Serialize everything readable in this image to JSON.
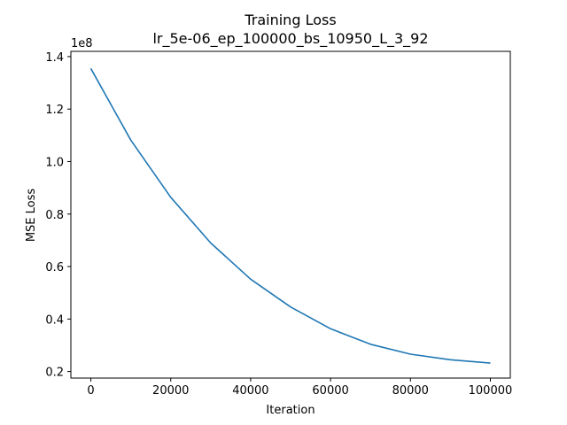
{
  "chart_data": {
    "type": "line",
    "title": "Training Loss",
    "subtitle": "lr_5e-06_ep_100000_bs_10950_L_3_92",
    "xlabel": "Iteration",
    "ylabel": "MSE Loss",
    "y_multiplier_label": "1e8",
    "xlim": [
      -5000,
      105000
    ],
    "ylim": [
      0.175,
      1.42
    ],
    "x_ticks": [
      0,
      20000,
      40000,
      60000,
      80000,
      100000
    ],
    "x_tick_labels": [
      "0",
      "20000",
      "40000",
      "60000",
      "80000",
      "100000"
    ],
    "y_ticks": [
      0.2,
      0.4,
      0.6,
      0.8,
      1.0,
      1.2,
      1.4
    ],
    "y_tick_labels": [
      "0.2",
      "0.4",
      "0.6",
      "0.8",
      "1.0",
      "1.2",
      "1.4"
    ],
    "grid": false,
    "legend": "none",
    "series": [
      {
        "color": "#1f77b4",
        "x": [
          0,
          10000,
          20000,
          30000,
          40000,
          50000,
          60000,
          70000,
          80000,
          90000,
          100000
        ],
        "y": [
          1.355,
          1.082,
          0.864,
          0.69,
          0.552,
          0.446,
          0.363,
          0.304,
          0.266,
          0.245,
          0.232
        ]
      }
    ]
  }
}
